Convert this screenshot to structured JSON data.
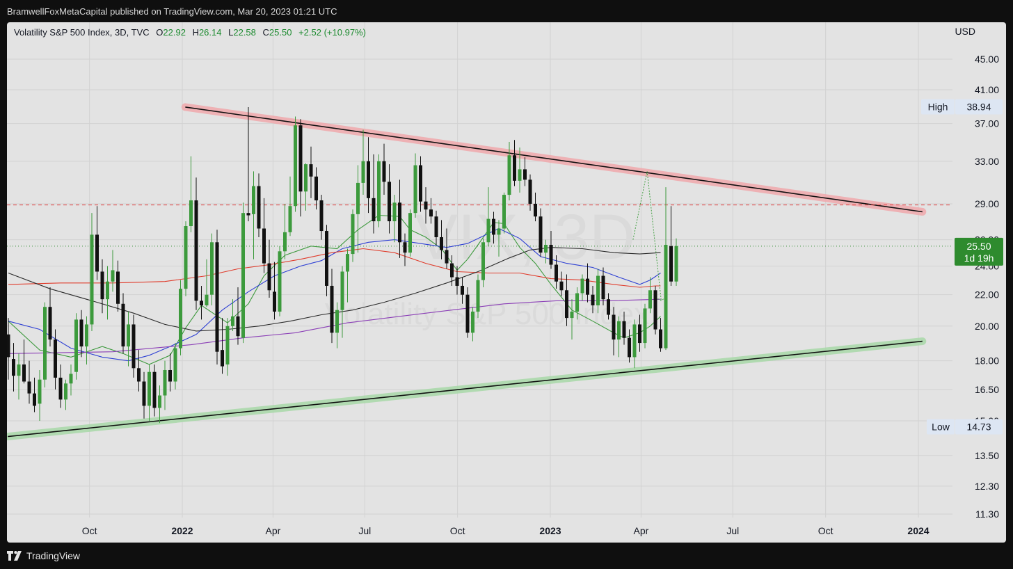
{
  "header": {
    "publish_line": "BramwellFoxMetaCapital published on TradingView.com, Mar 20, 2023 01:21 UTC"
  },
  "legend": {
    "symbol": "Volatility S&P 500 Index, 3D, TVC",
    "open_label": "O",
    "open": "22.92",
    "high_label": "H",
    "high": "26.14",
    "low_label": "L",
    "low": "22.58",
    "close_label": "C",
    "close": "25.50",
    "change": "+2.52 (+10.97%)"
  },
  "currency": "USD",
  "watermark": {
    "ticker": "VIX, 3D",
    "name": "Volatility S&P 500 Index"
  },
  "price_badges": {
    "high_label": "High",
    "high_value": "38.94",
    "low_label": "Low",
    "low_value": "14.73",
    "current_value": "25.50",
    "countdown": "1d 19h"
  },
  "footer": {
    "brand": "TradingView"
  },
  "colors": {
    "up": "#3c9a3c",
    "down": "#111111",
    "down_red": "#d32f3f",
    "sma_green": "#3e9a3e",
    "sma_blue": "#2d3fd4",
    "sma_red": "#e03c2c",
    "sma_black": "#2a2a2a",
    "sma_purple": "#8a3db6",
    "resistance_band": "#f0a8ac",
    "support_band": "#a8d8a8",
    "dashed_level": "#e04040",
    "current_price": "#2e8b2e"
  },
  "chart_data": {
    "type": "candlestick",
    "y_scale": "log",
    "y_ticks": [
      "45.00",
      "41.00",
      "37.00",
      "33.00",
      "29.00",
      "26.00",
      "24.00",
      "22.00",
      "20.00",
      "18.00",
      "16.50",
      "15.00",
      "13.50",
      "12.30",
      "11.30"
    ],
    "x_ticks": [
      {
        "label": "Oct",
        "bold": false
      },
      {
        "label": "2022",
        "bold": true
      },
      {
        "label": "Apr",
        "bold": false
      },
      {
        "label": "Jul",
        "bold": false
      },
      {
        "label": "Oct",
        "bold": false
      },
      {
        "label": "2023",
        "bold": true
      },
      {
        "label": "Apr",
        "bold": false
      },
      {
        "label": "Jul",
        "bold": false
      },
      {
        "label": "Oct",
        "bold": false
      },
      {
        "label": "2024",
        "bold": true
      }
    ],
    "dashed_level": 28.9,
    "current_price": 25.5,
    "resistance_line": {
      "from": {
        "date": "2022-01-04",
        "price": 38.9
      },
      "to": {
        "date": "2024-01-05",
        "price": 28.3
      }
    },
    "support_line": {
      "from": {
        "date": "2021-07-12",
        "price": 14.3
      },
      "to": {
        "date": "2024-01-05",
        "price": 19.1
      }
    },
    "projection": [
      {
        "date": "2023-03-24",
        "price": 26.0
      },
      {
        "date": "2023-04-07",
        "price": 32.0
      },
      {
        "date": "2023-04-21",
        "price": 21.6
      }
    ],
    "candles": [
      [
        19.5,
        20.5,
        17.0,
        18.2
      ],
      [
        18.1,
        19.0,
        16.4,
        17.2
      ],
      [
        17.2,
        18.4,
        16.0,
        17.8
      ],
      [
        17.8,
        19.2,
        16.8,
        16.9
      ],
      [
        16.9,
        18.0,
        15.8,
        16.3
      ],
      [
        16.3,
        17.1,
        15.4,
        15.7
      ],
      [
        15.8,
        17.5,
        15.0,
        17.0
      ],
      [
        17.0,
        21.5,
        16.6,
        21.2
      ],
      [
        21.2,
        22.5,
        18.8,
        19.2
      ],
      [
        19.2,
        19.8,
        16.5,
        17.1
      ],
      [
        17.1,
        17.8,
        15.6,
        16.0
      ],
      [
        16.0,
        17.0,
        15.5,
        16.8
      ],
      [
        16.8,
        17.8,
        16.2,
        17.3
      ],
      [
        17.4,
        20.8,
        17.0,
        20.4
      ],
      [
        20.4,
        21.0,
        18.2,
        18.8
      ],
      [
        18.8,
        20.6,
        17.8,
        20.1
      ],
      [
        20.1,
        28.2,
        19.7,
        26.4
      ],
      [
        26.4,
        28.8,
        23.0,
        23.6
      ],
      [
        23.6,
        24.5,
        20.8,
        21.7
      ],
      [
        21.7,
        24.0,
        20.4,
        22.9
      ],
      [
        22.9,
        25.2,
        22.2,
        23.7
      ],
      [
        23.6,
        24.4,
        20.9,
        21.4
      ],
      [
        21.4,
        22.1,
        18.4,
        18.8
      ],
      [
        18.8,
        20.9,
        17.7,
        20.1
      ],
      [
        20.1,
        20.7,
        17.1,
        17.6
      ],
      [
        17.6,
        18.6,
        16.4,
        16.9
      ],
      [
        16.9,
        17.4,
        15.1,
        15.7
      ],
      [
        15.7,
        17.8,
        15.0,
        17.4
      ],
      [
        17.4,
        17.8,
        15.2,
        15.6
      ],
      [
        15.6,
        16.7,
        14.9,
        16.2
      ],
      [
        16.2,
        18.0,
        15.5,
        17.5
      ],
      [
        17.5,
        18.4,
        16.4,
        16.9
      ],
      [
        16.9,
        19.0,
        16.5,
        18.7
      ],
      [
        18.7,
        23.0,
        18.3,
        22.4
      ],
      [
        22.4,
        27.5,
        21.9,
        27.1
      ],
      [
        27.1,
        33.5,
        26.6,
        29.3
      ],
      [
        29.3,
        31.4,
        21.0,
        21.6
      ],
      [
        21.6,
        22.6,
        20.4,
        21.3
      ],
      [
        21.3,
        24.5,
        21.2,
        22.0
      ],
      [
        22.0,
        26.5,
        21.3,
        25.8
      ],
      [
        25.8,
        26.8,
        17.8,
        18.5
      ],
      [
        18.6,
        20.5,
        17.3,
        17.7
      ],
      [
        17.8,
        20.5,
        17.2,
        20.0
      ],
      [
        20.0,
        21.7,
        19.7,
        20.6
      ],
      [
        20.6,
        22.5,
        18.9,
        19.4
      ],
      [
        19.3,
        29.1,
        19.0,
        28.2
      ],
      [
        28.2,
        38.9,
        27.5,
        28.0
      ],
      [
        28.1,
        32.0,
        24.5,
        30.6
      ],
      [
        30.6,
        31.8,
        26.2,
        26.9
      ],
      [
        26.9,
        29.5,
        23.5,
        24.2
      ],
      [
        24.2,
        26.0,
        21.8,
        22.3
      ],
      [
        22.2,
        24.3,
        20.4,
        20.9
      ],
      [
        20.9,
        25.5,
        20.6,
        25.1
      ],
      [
        25.1,
        29.0,
        24.5,
        26.6
      ],
      [
        26.6,
        31.5,
        26.3,
        28.8
      ],
      [
        28.8,
        37.8,
        28.3,
        36.8
      ],
      [
        36.8,
        37.5,
        27.9,
        30.1
      ],
      [
        30.1,
        32.8,
        28.4,
        32.7
      ],
      [
        32.7,
        34.5,
        29.5,
        31.5
      ],
      [
        31.5,
        32.4,
        28.5,
        29.3
      ],
      [
        29.3,
        29.8,
        26.0,
        26.7
      ],
      [
        26.7,
        27.2,
        21.9,
        22.6
      ],
      [
        22.6,
        23.8,
        19.0,
        19.6
      ],
      [
        19.6,
        21.5,
        18.7,
        21.0
      ],
      [
        21.0,
        24.0,
        19.3,
        23.6
      ],
      [
        23.6,
        25.3,
        21.5,
        24.9
      ],
      [
        24.9,
        28.5,
        24.3,
        28.1
      ],
      [
        28.1,
        32.6,
        25.0,
        30.9
      ],
      [
        30.9,
        36.3,
        29.8,
        33.0
      ],
      [
        33.0,
        35.5,
        28.2,
        29.5
      ],
      [
        29.5,
        33.7,
        26.5,
        27.5
      ],
      [
        27.5,
        33.7,
        27.0,
        33.0
      ],
      [
        33.0,
        34.8,
        29.8,
        31.0
      ],
      [
        31.0,
        32.7,
        26.5,
        27.5
      ],
      [
        27.5,
        29.8,
        25.8,
        29.1
      ],
      [
        29.1,
        31.2,
        24.6,
        25.8
      ],
      [
        25.8,
        26.5,
        24.0,
        25.0
      ],
      [
        25.0,
        28.5,
        24.7,
        28.2
      ],
      [
        28.2,
        33.8,
        27.8,
        32.6
      ],
      [
        32.6,
        33.5,
        28.3,
        29.2
      ],
      [
        29.2,
        30.5,
        27.3,
        28.5
      ],
      [
        28.5,
        29.5,
        27.3,
        27.9
      ],
      [
        27.9,
        28.4,
        25.6,
        26.2
      ],
      [
        26.2,
        27.6,
        24.5,
        25.2
      ],
      [
        25.2,
        26.9,
        23.8,
        24.2
      ],
      [
        24.2,
        24.8,
        22.6,
        23.2
      ],
      [
        23.2,
        24.0,
        22.0,
        22.6
      ],
      [
        22.6,
        23.2,
        21.4,
        22.0
      ],
      [
        22.0,
        22.5,
        19.3,
        19.6
      ],
      [
        19.6,
        21.2,
        19.1,
        20.9
      ],
      [
        20.9,
        23.4,
        20.5,
        23.0
      ],
      [
        23.0,
        26.1,
        22.5,
        25.8
      ],
      [
        25.8,
        30.5,
        25.5,
        27.7
      ],
      [
        27.7,
        28.3,
        25.7,
        26.4
      ],
      [
        26.4,
        27.6,
        24.7,
        26.9
      ],
      [
        26.9,
        30.0,
        26.5,
        29.8
      ],
      [
        29.8,
        35.0,
        29.3,
        33.6
      ],
      [
        33.6,
        35.2,
        30.6,
        31.1
      ],
      [
        31.1,
        34.4,
        30.0,
        32.2
      ],
      [
        32.2,
        33.4,
        30.6,
        31.2
      ],
      [
        31.2,
        31.7,
        28.4,
        29.0
      ],
      [
        29.0,
        30.0,
        27.5,
        27.9
      ],
      [
        27.9,
        28.6,
        24.7,
        25.0
      ],
      [
        25.0,
        26.0,
        24.2,
        25.6
      ],
      [
        25.6,
        26.7,
        23.8,
        24.1
      ],
      [
        24.1,
        24.8,
        22.4,
        22.9
      ],
      [
        22.9,
        23.6,
        21.9,
        22.3
      ],
      [
        22.3,
        23.4,
        20.0,
        20.5
      ],
      [
        20.5,
        21.7,
        19.2,
        20.9
      ],
      [
        20.9,
        22.5,
        20.4,
        22.1
      ],
      [
        22.1,
        23.4,
        21.6,
        23.1
      ],
      [
        23.1,
        24.2,
        21.5,
        22.0
      ],
      [
        22.0,
        22.6,
        20.8,
        21.3
      ],
      [
        21.3,
        23.8,
        20.8,
        23.3
      ],
      [
        23.3,
        23.9,
        21.3,
        21.7
      ],
      [
        21.7,
        22.1,
        20.4,
        20.7
      ],
      [
        20.7,
        21.2,
        18.3,
        19.2
      ],
      [
        19.2,
        20.6,
        18.2,
        20.3
      ],
      [
        20.3,
        20.9,
        18.9,
        19.3
      ],
      [
        19.3,
        19.8,
        17.9,
        18.2
      ],
      [
        18.2,
        20.4,
        17.6,
        20.1
      ],
      [
        20.1,
        20.7,
        18.5,
        19.0
      ],
      [
        19.0,
        21.4,
        18.7,
        21.1
      ],
      [
        21.1,
        23.2,
        20.8,
        22.3
      ],
      [
        22.3,
        22.6,
        19.5,
        19.8
      ],
      [
        19.8,
        20.5,
        18.5,
        18.7
      ],
      [
        18.7,
        30.5,
        18.6,
        25.6
      ],
      [
        25.5,
        28.8,
        22.6,
        22.9
      ],
      [
        22.9,
        26.1,
        22.6,
        25.5
      ]
    ],
    "moving_averages": [
      {
        "name": "sma_green",
        "points": [
          [
            0,
            20.3
          ],
          [
            6,
            18.6
          ],
          [
            12,
            18.2
          ],
          [
            18,
            18.8
          ],
          [
            22,
            18.4
          ],
          [
            27,
            17.8
          ],
          [
            31,
            18.3
          ],
          [
            34,
            19.9
          ],
          [
            37,
            21.3
          ],
          [
            42,
            20.2
          ],
          [
            46,
            21.4
          ],
          [
            49,
            23.3
          ],
          [
            53,
            24.8
          ],
          [
            58,
            25.5
          ],
          [
            63,
            25.3
          ],
          [
            67,
            26.8
          ],
          [
            71,
            28.0
          ],
          [
            75,
            27.9
          ],
          [
            77,
            26.8
          ],
          [
            80,
            26.2
          ],
          [
            83,
            25.3
          ],
          [
            86,
            23.7
          ],
          [
            88,
            24.5
          ],
          [
            90,
            25.6
          ],
          [
            93,
            27.4
          ],
          [
            95,
            27.3
          ],
          [
            98,
            25.4
          ],
          [
            101,
            24.2
          ],
          [
            104,
            22.7
          ],
          [
            108,
            21.0
          ],
          [
            112,
            20.3
          ],
          [
            116,
            19.6
          ],
          [
            118,
            19.3
          ],
          [
            121,
            19.6
          ],
          [
            123,
            20.0
          ],
          [
            125,
            20.6
          ]
        ]
      },
      {
        "name": "sma_blue",
        "points": [
          [
            0,
            20.3
          ],
          [
            6,
            19.8
          ],
          [
            12,
            18.7
          ],
          [
            18,
            18.2
          ],
          [
            23,
            18.0
          ],
          [
            27,
            18.3
          ],
          [
            31,
            18.8
          ],
          [
            36,
            19.5
          ],
          [
            41,
            21.0
          ],
          [
            46,
            22.2
          ],
          [
            51,
            23.3
          ],
          [
            56,
            24.0
          ],
          [
            60,
            24.4
          ],
          [
            64,
            25.3
          ],
          [
            69,
            25.8
          ],
          [
            74,
            26.0
          ],
          [
            79,
            25.7
          ],
          [
            84,
            25.4
          ],
          [
            88,
            25.7
          ],
          [
            94,
            26.9
          ],
          [
            98,
            26.1
          ],
          [
            102,
            24.7
          ],
          [
            107,
            24.2
          ],
          [
            112,
            23.9
          ],
          [
            117,
            23.2
          ],
          [
            121,
            22.7
          ],
          [
            123,
            23.0
          ],
          [
            125,
            23.5
          ]
        ]
      },
      {
        "name": "sma_red",
        "points": [
          [
            0,
            22.7
          ],
          [
            10,
            22.8
          ],
          [
            20,
            22.8
          ],
          [
            30,
            22.9
          ],
          [
            38,
            23.3
          ],
          [
            44,
            23.8
          ],
          [
            50,
            24.1
          ],
          [
            56,
            24.5
          ],
          [
            62,
            25.0
          ],
          [
            68,
            25.3
          ],
          [
            74,
            25.0
          ],
          [
            80,
            24.2
          ],
          [
            86,
            23.6
          ],
          [
            92,
            23.5
          ],
          [
            98,
            23.5
          ],
          [
            104,
            23.1
          ],
          [
            110,
            23.0
          ],
          [
            116,
            22.7
          ],
          [
            121,
            22.5
          ],
          [
            124,
            22.6
          ],
          [
            125,
            22.6
          ]
        ]
      },
      {
        "name": "sma_black",
        "points": [
          [
            0,
            23.5
          ],
          [
            8,
            22.4
          ],
          [
            16,
            21.6
          ],
          [
            24,
            20.8
          ],
          [
            30,
            20.1
          ],
          [
            36,
            19.7
          ],
          [
            42,
            19.8
          ],
          [
            48,
            20.0
          ],
          [
            54,
            20.3
          ],
          [
            60,
            20.7
          ],
          [
            66,
            21.0
          ],
          [
            72,
            21.5
          ],
          [
            78,
            22.1
          ],
          [
            84,
            22.8
          ],
          [
            90,
            23.6
          ],
          [
            96,
            24.6
          ],
          [
            100,
            25.2
          ],
          [
            104,
            25.4
          ],
          [
            110,
            25.3
          ],
          [
            116,
            25.0
          ],
          [
            121,
            24.9
          ],
          [
            125,
            25.0
          ]
        ]
      },
      {
        "name": "sma_purple",
        "points": [
          [
            0,
            18.4
          ],
          [
            20,
            18.5
          ],
          [
            35,
            18.9
          ],
          [
            45,
            19.3
          ],
          [
            55,
            19.6
          ],
          [
            65,
            20.2
          ],
          [
            75,
            20.6
          ],
          [
            85,
            21.0
          ],
          [
            95,
            21.4
          ],
          [
            105,
            21.6
          ],
          [
            115,
            21.6
          ],
          [
            125,
            21.7
          ]
        ]
      }
    ]
  }
}
